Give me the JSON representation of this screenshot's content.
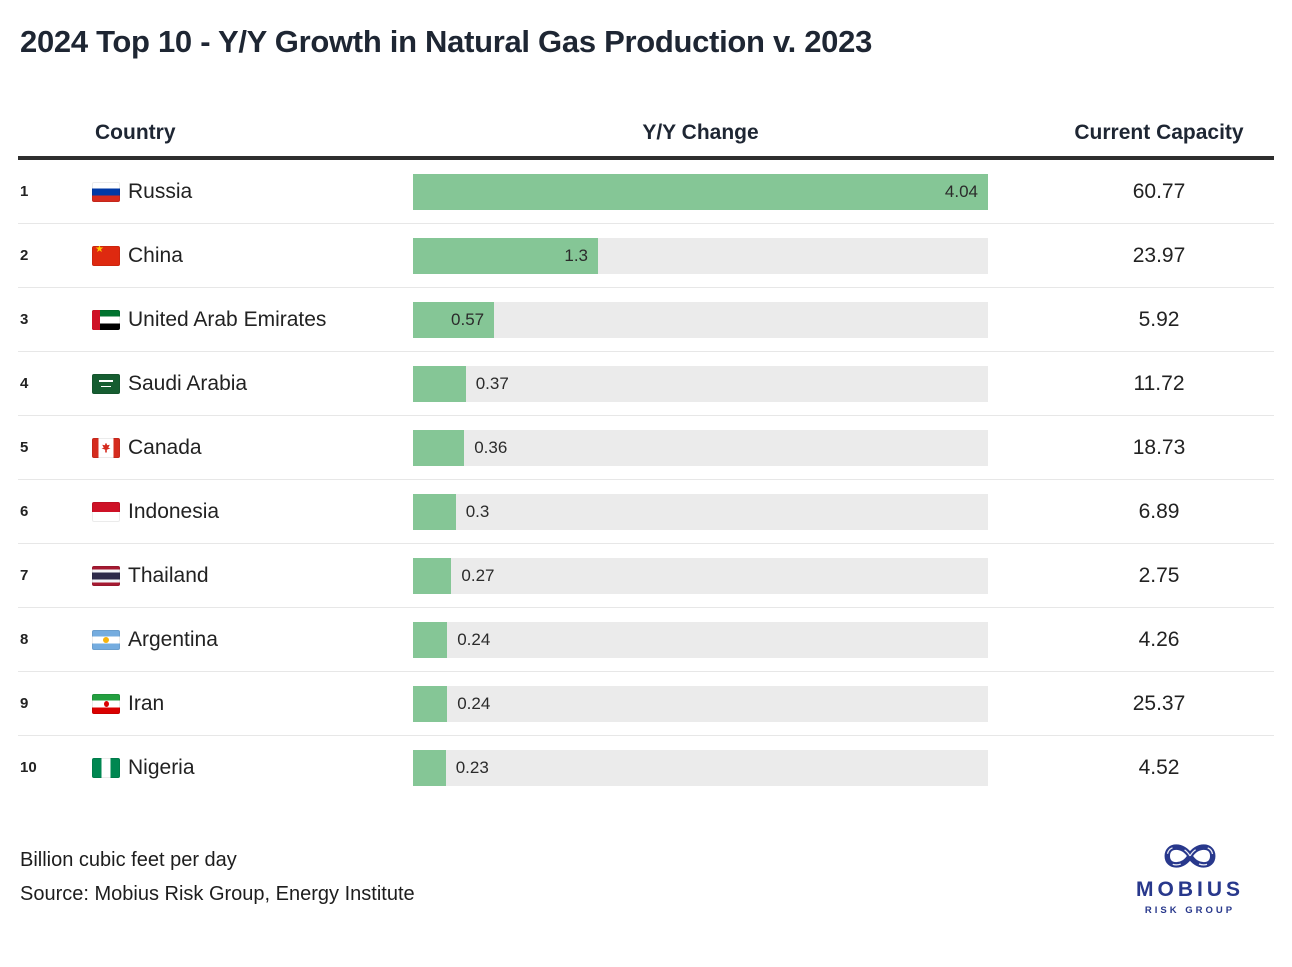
{
  "title": "2024 Top 10 - Y/Y Growth in Natural Gas Production v. 2023",
  "table": {
    "columns": {
      "country": "Country",
      "change": "Y/Y Change",
      "capacity": "Current Capacity"
    }
  },
  "chart_data": {
    "type": "bar",
    "title": "2024 Top 10 - Y/Y Growth in Natural Gas Production v. 2023",
    "categories": [
      "Russia",
      "China",
      "United Arab Emirates",
      "Saudi Arabia",
      "Canada",
      "Indonesia",
      "Thailand",
      "Argentina",
      "Iran",
      "Nigeria"
    ],
    "series": [
      {
        "name": "Y/Y Change",
        "values": [
          4.04,
          1.3,
          0.57,
          0.37,
          0.36,
          0.3,
          0.27,
          0.24,
          0.24,
          0.23
        ]
      },
      {
        "name": "Current Capacity",
        "values": [
          60.77,
          23.97,
          5.92,
          11.72,
          18.73,
          6.89,
          2.75,
          4.26,
          25.37,
          4.52
        ]
      }
    ],
    "xlim": [
      0,
      4.04
    ],
    "unit": "Billion cubic feet per day",
    "bar_color": "#85c696",
    "track_color": "#ebebeb",
    "legend_position": "none",
    "grid": false,
    "rows": [
      {
        "rank": "1",
        "flag": "ru",
        "country": "Russia",
        "change": 4.04,
        "change_label": "4.04",
        "capacity": "60.77"
      },
      {
        "rank": "2",
        "flag": "cn",
        "country": "China",
        "change": 1.3,
        "change_label": "1.3",
        "capacity": "23.97"
      },
      {
        "rank": "3",
        "flag": "ae",
        "country": "United Arab Emirates",
        "change": 0.57,
        "change_label": "0.57",
        "capacity": "5.92"
      },
      {
        "rank": "4",
        "flag": "sa",
        "country": "Saudi Arabia",
        "change": 0.37,
        "change_label": "0.37",
        "capacity": "11.72"
      },
      {
        "rank": "5",
        "flag": "ca",
        "country": "Canada",
        "change": 0.36,
        "change_label": "0.36",
        "capacity": "18.73"
      },
      {
        "rank": "6",
        "flag": "id",
        "country": "Indonesia",
        "change": 0.3,
        "change_label": "0.3",
        "capacity": "6.89"
      },
      {
        "rank": "7",
        "flag": "th",
        "country": "Thailand",
        "change": 0.27,
        "change_label": "0.27",
        "capacity": "2.75"
      },
      {
        "rank": "8",
        "flag": "ar",
        "country": "Argentina",
        "change": 0.24,
        "change_label": "0.24",
        "capacity": "4.26"
      },
      {
        "rank": "9",
        "flag": "ir",
        "country": "Iran",
        "change": 0.24,
        "change_label": "0.24",
        "capacity": "25.37"
      },
      {
        "rank": "10",
        "flag": "ng",
        "country": "Nigeria",
        "change": 0.23,
        "change_label": "0.23",
        "capacity": "4.52"
      }
    ]
  },
  "footer": {
    "unit_note": "Billion cubic feet per day",
    "source": "Source: Mobius Risk Group, Energy Institute"
  },
  "logo": {
    "brand": "MOBIUS",
    "tagline": "RISK GROUP",
    "color": "#28388c"
  }
}
